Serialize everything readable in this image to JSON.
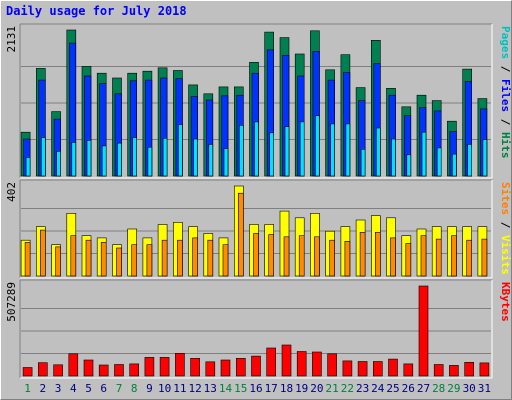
{
  "chart_data": {
    "type": "bar",
    "title": "Daily usage for July 2018",
    "categories": [
      "1",
      "2",
      "3",
      "4",
      "5",
      "6",
      "7",
      "8",
      "9",
      "10",
      "11",
      "12",
      "13",
      "14",
      "15",
      "16",
      "17",
      "18",
      "19",
      "20",
      "21",
      "22",
      "23",
      "24",
      "25",
      "26",
      "27",
      "28",
      "29",
      "30",
      "31"
    ],
    "weekend_days": [
      1,
      7,
      8,
      14,
      15,
      21,
      22,
      28,
      29
    ],
    "weekend_tick_color": "#008040",
    "weekday_tick_color": "#000080",
    "panels": [
      {
        "id": "pages-files-hits",
        "ymax_label": "2131",
        "ylim": [
          0,
          2131
        ],
        "legend": [
          {
            "text": "Pages",
            "color": "#00c0c0"
          },
          {
            "text": " / ",
            "color": "#000000"
          },
          {
            "text": "Files",
            "color": "#0000ff"
          },
          {
            "text": " / ",
            "color": "#000000"
          },
          {
            "text": "Hits",
            "color": "#008040"
          }
        ],
        "series": [
          {
            "name": "Hits",
            "color": "#008050",
            "values": [
              640,
              1570,
              940,
              2131,
              1600,
              1500,
              1430,
              1500,
              1530,
              1580,
              1540,
              1330,
              1200,
              1300,
              1300,
              1660,
              2100,
              2020,
              1780,
              2120,
              1550,
              1770,
              1290,
              1980,
              1280,
              1010,
              1180,
              1100,
              800,
              1560,
              1130
            ]
          },
          {
            "name": "Files",
            "color": "#0033ff",
            "values": [
              540,
              1400,
              830,
              1940,
              1460,
              1350,
              1200,
              1390,
              1400,
              1430,
              1420,
              1160,
              1110,
              1170,
              1180,
              1500,
              1840,
              1760,
              1460,
              1820,
              1400,
              1510,
              1100,
              1640,
              1180,
              880,
              1000,
              950,
              650,
              1380,
              980
            ]
          },
          {
            "name": "Pages",
            "color": "#00e0ff",
            "values": [
              270,
              560,
              360,
              490,
              520,
              440,
              480,
              560,
              420,
              550,
              750,
              540,
              460,
              400,
              740,
              790,
              630,
              720,
              790,
              880,
              760,
              760,
              390,
              700,
              540,
              310,
              640,
              410,
              320,
              460,
              530
            ]
          }
        ]
      },
      {
        "id": "visits-sites",
        "ymax_label": "402",
        "ylim": [
          0,
          402
        ],
        "legend": [
          {
            "text": "Sites",
            "color": "#ff8000"
          },
          {
            "text": " / ",
            "color": "#000000"
          },
          {
            "text": "Visits",
            "color": "#ffff00"
          }
        ],
        "series": [
          {
            "name": "Visits",
            "color": "#ffff00",
            "values": [
              160,
              220,
              140,
              280,
              180,
              170,
              140,
              210,
              170,
              230,
              240,
              220,
              190,
              170,
              402,
              230,
              230,
              290,
              260,
              280,
              200,
              220,
              250,
              270,
              260,
              180,
              210,
              220,
              220,
              220,
              220
            ]
          },
          {
            "name": "Sites",
            "color": "#ff8c00",
            "values": [
              150,
              205,
              130,
              180,
              160,
              150,
              125,
              140,
              140,
              160,
              160,
              170,
              160,
              140,
              370,
              190,
              185,
              175,
              180,
              175,
              160,
              155,
              195,
              195,
              170,
              145,
              180,
              165,
              180,
              160,
              165
            ]
          }
        ]
      },
      {
        "id": "kbytes",
        "ymax_label": "507289",
        "ylim": [
          0,
          507289
        ],
        "legend": [
          {
            "text": "KBytes",
            "color": "#ff0000"
          }
        ],
        "series": [
          {
            "name": "KBytes",
            "color": "#ff0000",
            "values": [
              48000,
              75000,
              63000,
              125000,
              90000,
              62000,
              65000,
              68000,
              105000,
              105000,
              128000,
              100000,
              80000,
              90000,
              100000,
              112000,
              158000,
              175000,
              138000,
              135000,
              125000,
              85000,
              82000,
              82000,
              95000,
              68000,
              507289,
              65000,
              60000,
              77000,
              74000
            ]
          }
        ]
      }
    ]
  }
}
